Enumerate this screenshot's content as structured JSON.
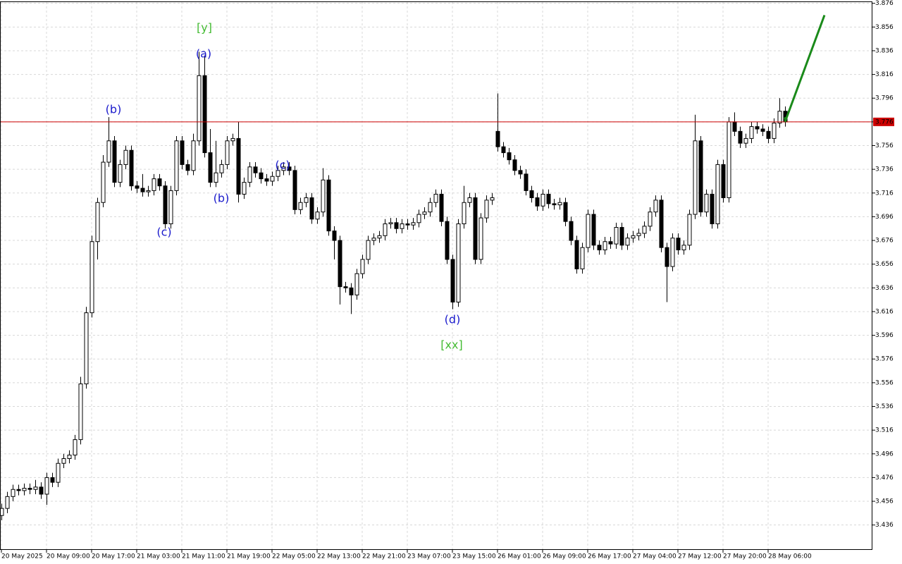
{
  "chart_data": {
    "type": "candlestick",
    "categories": [
      "20 May 2025",
      null,
      null,
      null,
      null,
      null,
      null,
      null,
      "20 May 09:00",
      null,
      null,
      null,
      null,
      null,
      null,
      null,
      "20 May 17:00",
      null,
      null,
      null,
      null,
      null,
      null,
      null,
      "21 May 03:00",
      null,
      null,
      null,
      null,
      null,
      null,
      null,
      "21 May 11:00",
      null,
      null,
      null,
      null,
      null,
      null,
      null,
      "21 May 19:00",
      null,
      null,
      null,
      null,
      null,
      null,
      null,
      "22 May 05:00",
      null,
      null,
      null,
      null,
      null,
      null,
      null,
      "22 May 13:00",
      null,
      null,
      null,
      null,
      null,
      null,
      null,
      "22 May 21:00",
      null,
      null,
      null,
      null,
      null,
      null,
      null,
      "23 May 07:00",
      null,
      null,
      null,
      null,
      null,
      null,
      null,
      "23 May 15:00",
      null,
      null,
      null,
      null,
      null,
      null,
      null,
      "26 May 01:00",
      null,
      null,
      null,
      null,
      null,
      null,
      null,
      "26 May 09:00",
      null,
      null,
      null,
      null,
      null,
      null,
      null,
      "26 May 17:00",
      null,
      null,
      null,
      null,
      null,
      null,
      null,
      "27 May 04:00",
      null,
      null,
      null,
      null,
      null,
      null,
      null,
      "27 May 12:00",
      null,
      null,
      null,
      null,
      null,
      null,
      null,
      "27 May 20:00",
      null,
      null,
      null,
      null,
      null,
      null,
      null,
      "28 May 06:00",
      null,
      null,
      null
    ],
    "open": [
      3.444,
      3.45,
      3.46,
      3.466,
      3.465,
      3.467,
      3.466,
      3.468,
      3.462,
      3.476,
      3.472,
      3.488,
      3.492,
      3.495,
      3.508,
      3.555,
      3.615,
      3.675,
      3.708,
      3.742,
      3.76,
      3.725,
      3.74,
      3.752,
      3.722,
      3.72,
      3.717,
      3.718,
      3.728,
      3.722,
      3.69,
      3.718,
      3.76,
      3.74,
      3.735,
      3.76,
      3.815,
      3.75,
      3.725,
      3.733,
      3.74,
      3.76,
      3.762,
      3.715,
      3.725,
      3.738,
      3.733,
      3.728,
      3.726,
      3.73,
      3.735,
      3.738,
      3.735,
      3.702,
      3.708,
      3.712,
      3.694,
      3.7,
      3.727,
      3.684,
      3.676,
      3.637,
      3.636,
      3.63,
      3.648,
      3.66,
      3.676,
      3.678,
      3.68,
      3.69,
      3.691,
      3.686,
      3.69,
      3.689,
      3.691,
      3.698,
      3.7,
      3.708,
      3.715,
      3.692,
      3.66,
      3.624,
      3.69,
      3.708,
      3.712,
      3.66,
      3.695,
      3.71,
      3.768,
      3.755,
      3.75,
      3.744,
      3.735,
      3.732,
      3.718,
      3.712,
      3.705,
      3.715,
      3.707,
      3.706,
      3.708,
      3.692,
      3.676,
      3.652,
      3.67,
      3.698,
      3.672,
      3.668,
      3.675,
      3.673,
      3.687,
      3.672,
      3.678,
      3.68,
      3.682,
      3.688,
      3.7,
      3.71,
      3.67,
      3.654,
      3.678,
      3.668,
      3.672,
      3.698,
      3.76,
      3.7,
      3.715,
      3.69,
      3.74,
      3.712,
      3.776,
      3.768,
      3.758,
      3.762,
      3.772,
      3.77,
      3.768,
      3.762,
      3.775,
      3.785
    ],
    "high": [
      3.454,
      3.464,
      3.47,
      3.47,
      3.471,
      3.471,
      3.474,
      3.472,
      3.48,
      3.48,
      3.492,
      3.496,
      3.499,
      3.512,
      3.561,
      3.62,
      3.68,
      3.712,
      3.748,
      3.78,
      3.764,
      3.744,
      3.756,
      3.756,
      3.726,
      3.732,
      3.722,
      3.732,
      3.732,
      3.726,
      3.722,
      3.764,
      3.764,
      3.744,
      3.766,
      3.835,
      3.832,
      3.77,
      3.76,
      3.744,
      3.764,
      3.766,
      3.776,
      3.729,
      3.742,
      3.742,
      3.737,
      3.732,
      3.734,
      3.739,
      3.742,
      3.742,
      3.739,
      3.712,
      3.716,
      3.716,
      3.704,
      3.737,
      3.731,
      3.688,
      3.68,
      3.641,
      3.64,
      3.652,
      3.664,
      3.68,
      3.682,
      3.684,
      3.694,
      3.695,
      3.695,
      3.694,
      3.694,
      3.695,
      3.702,
      3.704,
      3.712,
      3.719,
      3.719,
      3.696,
      3.664,
      3.694,
      3.722,
      3.716,
      3.716,
      3.699,
      3.714,
      3.716,
      3.8,
      3.759,
      3.754,
      3.748,
      3.739,
      3.736,
      3.722,
      3.716,
      3.719,
      3.719,
      3.711,
      3.712,
      3.712,
      3.696,
      3.68,
      3.674,
      3.702,
      3.702,
      3.676,
      3.679,
      3.679,
      3.691,
      3.691,
      3.682,
      3.684,
      3.686,
      3.692,
      3.704,
      3.714,
      3.714,
      3.674,
      3.682,
      3.682,
      3.676,
      3.702,
      3.782,
      3.764,
      3.719,
      3.719,
      3.744,
      3.744,
      3.78,
      3.784,
      3.772,
      3.766,
      3.776,
      3.776,
      3.774,
      3.772,
      3.779,
      3.796,
      3.789
    ],
    "low": [
      3.44,
      3.446,
      3.456,
      3.461,
      3.461,
      3.462,
      3.462,
      3.458,
      3.453,
      3.468,
      3.468,
      3.484,
      3.488,
      3.491,
      3.504,
      3.551,
      3.611,
      3.66,
      3.704,
      3.738,
      3.721,
      3.721,
      3.736,
      3.718,
      3.716,
      3.713,
      3.713,
      3.714,
      3.718,
      3.686,
      3.686,
      3.714,
      3.736,
      3.731,
      3.731,
      3.756,
      3.746,
      3.721,
      3.721,
      3.729,
      3.736,
      3.756,
      3.708,
      3.711,
      3.721,
      3.729,
      3.724,
      3.722,
      3.722,
      3.726,
      3.731,
      3.731,
      3.698,
      3.698,
      3.704,
      3.69,
      3.69,
      3.696,
      3.68,
      3.66,
      3.622,
      3.632,
      3.614,
      3.626,
      3.644,
      3.656,
      3.672,
      3.674,
      3.676,
      3.686,
      3.682,
      3.682,
      3.685,
      3.685,
      3.687,
      3.694,
      3.696,
      3.704,
      3.688,
      3.656,
      3.618,
      3.62,
      3.686,
      3.704,
      3.656,
      3.656,
      3.691,
      3.706,
      3.751,
      3.746,
      3.74,
      3.731,
      3.728,
      3.714,
      3.708,
      3.701,
      3.701,
      3.703,
      3.702,
      3.702,
      3.688,
      3.672,
      3.648,
      3.648,
      3.666,
      3.668,
      3.664,
      3.664,
      3.669,
      3.669,
      3.668,
      3.668,
      3.674,
      3.676,
      3.678,
      3.684,
      3.696,
      3.666,
      3.624,
      3.65,
      3.664,
      3.664,
      3.668,
      3.694,
      3.696,
      3.696,
      3.686,
      3.686,
      3.708,
      3.708,
      3.764,
      3.754,
      3.754,
      3.758,
      3.766,
      3.764,
      3.758,
      3.758,
      3.771,
      3.772
    ],
    "close": [
      3.45,
      3.46,
      3.466,
      3.465,
      3.467,
      3.466,
      3.468,
      3.462,
      3.476,
      3.472,
      3.488,
      3.492,
      3.495,
      3.508,
      3.555,
      3.615,
      3.675,
      3.708,
      3.742,
      3.76,
      3.725,
      3.74,
      3.752,
      3.722,
      3.72,
      3.717,
      3.718,
      3.728,
      3.722,
      3.69,
      3.718,
      3.76,
      3.74,
      3.735,
      3.76,
      3.815,
      3.75,
      3.725,
      3.733,
      3.74,
      3.76,
      3.762,
      3.715,
      3.725,
      3.738,
      3.733,
      3.728,
      3.726,
      3.73,
      3.735,
      3.738,
      3.735,
      3.702,
      3.708,
      3.712,
      3.694,
      3.7,
      3.727,
      3.684,
      3.676,
      3.637,
      3.636,
      3.63,
      3.648,
      3.66,
      3.676,
      3.678,
      3.68,
      3.69,
      3.691,
      3.686,
      3.69,
      3.689,
      3.691,
      3.698,
      3.7,
      3.708,
      3.715,
      3.692,
      3.66,
      3.624,
      3.69,
      3.708,
      3.712,
      3.66,
      3.695,
      3.71,
      3.712,
      3.755,
      3.75,
      3.744,
      3.735,
      3.732,
      3.718,
      3.712,
      3.705,
      3.715,
      3.707,
      3.706,
      3.708,
      3.692,
      3.676,
      3.652,
      3.67,
      3.698,
      3.672,
      3.668,
      3.675,
      3.673,
      3.687,
      3.672,
      3.678,
      3.68,
      3.682,
      3.688,
      3.7,
      3.71,
      3.67,
      3.654,
      3.678,
      3.668,
      3.672,
      3.698,
      3.76,
      3.7,
      3.715,
      3.69,
      3.74,
      3.712,
      3.776,
      3.768,
      3.758,
      3.762,
      3.772,
      3.77,
      3.768,
      3.762,
      3.775,
      3.785,
      3.776
    ],
    "up_color": "#ffffff",
    "down_color": "#000000",
    "ylim": [
      3.415,
      3.877
    ],
    "yticks": [
      3.436,
      3.456,
      3.476,
      3.496,
      3.516,
      3.536,
      3.556,
      3.576,
      3.596,
      3.616,
      3.636,
      3.656,
      3.676,
      3.696,
      3.716,
      3.736,
      3.756,
      3.776,
      3.796,
      3.816,
      3.836,
      3.856,
      3.876
    ],
    "grid": true,
    "price_line": {
      "value": 3.776,
      "color": "#cc0000"
    },
    "forecast": {
      "values": [
        3.776,
        3.866
      ],
      "color": "#1a8a1a"
    },
    "annotations": [
      {
        "text": "[y]",
        "color": "#44bb33"
      },
      {
        "text": "(a)",
        "color": "#1a1acc"
      },
      {
        "text": "(b)",
        "color": "#1a1acc"
      },
      {
        "text": "(c)",
        "color": "#1a1acc"
      },
      {
        "text": "(b)",
        "color": "#1a1acc"
      },
      {
        "text": "(c)",
        "color": "#1a1acc"
      },
      {
        "text": "(d)",
        "color": "#1a1acc"
      },
      {
        "text": "[xx]",
        "color": "#44bb33"
      }
    ]
  }
}
